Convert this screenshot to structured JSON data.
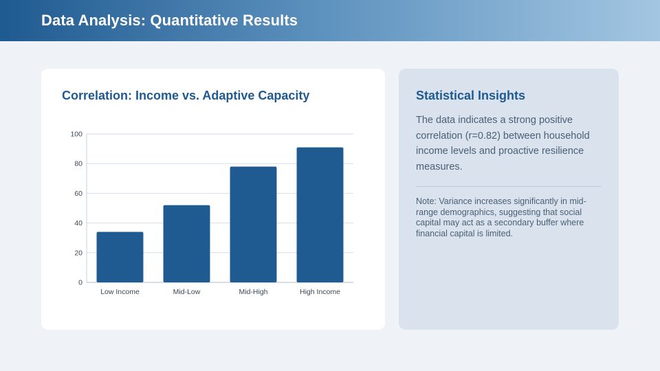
{
  "header": {
    "title": "Data Analysis: Quantitative Results"
  },
  "chart_card": {
    "title": "Correlation: Income vs. Adaptive Capacity"
  },
  "chart_data": {
    "type": "bar",
    "title": "Correlation: Income vs. Adaptive Capacity",
    "categories": [
      "Low Income",
      "Mid-Low",
      "Mid-High",
      "High Income"
    ],
    "values": [
      34,
      52,
      78,
      91
    ],
    "yticks": [
      0,
      20,
      40,
      60,
      80,
      100
    ],
    "ylim": [
      0,
      100
    ],
    "xlabel": "",
    "ylabel": "",
    "grid": true,
    "bar_color": "#1f5a90",
    "grid_color": "#d6dee8",
    "axis_color": "#c7d2de"
  },
  "insights": {
    "title": "Statistical Insights",
    "body": "The data indicates a strong positive correlation (r=0.82) between household income levels and proactive resilience measures.",
    "note": "Note: Variance increases significantly in mid-range demographics, suggesting that social capital may act as a secondary buffer where financial capital is limited."
  },
  "colors": {
    "accent": "#1f5a90",
    "background": "#eff3f8",
    "insights_background": "#d9e2ed"
  }
}
